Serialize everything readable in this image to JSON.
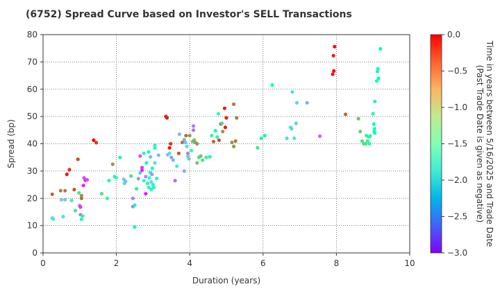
{
  "chart_data": {
    "type": "scatter",
    "title": "(6752)   Spread Curve based on Investor's SELL Transactions",
    "xlabel": "Duration (years)",
    "ylabel": "Spread (bp)",
    "xlim": [
      0,
      10
    ],
    "ylim": [
      0,
      80
    ],
    "x_ticks": [
      "0",
      "2",
      "4",
      "6",
      "8",
      "10"
    ],
    "y_ticks": [
      "0",
      "10",
      "20",
      "30",
      "40",
      "50",
      "60",
      "70",
      "80"
    ],
    "grid": true,
    "colorbar": {
      "label_line1": "Time in years between 5/16/2025 and Trade Date",
      "label_line2": "(Past Trade Date is given as negative)",
      "range": [
        -3.0,
        0.0
      ],
      "ticks": [
        "0.0",
        "−0.5",
        "−1.0",
        "−1.5",
        "−2.0",
        "−2.5",
        "−3.0"
      ],
      "colormap": "rainbow"
    },
    "points": [
      [
        0.25,
        12.8,
        -1.9
      ],
      [
        0.28,
        12.4,
        -1.9
      ],
      [
        0.25,
        21.5,
        -0.4
      ],
      [
        0.48,
        22.8,
        -0.5
      ],
      [
        0.5,
        19.5,
        -2.1
      ],
      [
        0.55,
        13.3,
        -2.0
      ],
      [
        0.6,
        19.5,
        -2.2
      ],
      [
        0.6,
        22.8,
        -0.5
      ],
      [
        0.65,
        28.8,
        -0.1
      ],
      [
        0.72,
        30.5,
        -0.2
      ],
      [
        0.78,
        19.2,
        -2.0
      ],
      [
        0.85,
        23.2,
        -0.3
      ],
      [
        0.88,
        15.5,
        -1.2
      ],
      [
        0.95,
        34.3,
        -0.3
      ],
      [
        0.98,
        22.0,
        -1.1
      ],
      [
        1.0,
        17.3,
        -2.6
      ],
      [
        1.02,
        16.8,
        -2.8
      ],
      [
        1.02,
        14.0,
        -2.5
      ],
      [
        1.05,
        12.3,
        -1.3
      ],
      [
        1.05,
        21.0,
        -0.6
      ],
      [
        1.05,
        20.0,
        -0.4
      ],
      [
        1.08,
        13.5,
        -1.2
      ],
      [
        1.1,
        24.7,
        -2.9
      ],
      [
        1.12,
        27.5,
        -2.7
      ],
      [
        1.15,
        26.6,
        -2.8
      ],
      [
        1.2,
        26.8,
        -2.7
      ],
      [
        1.38,
        41.3,
        0.0
      ],
      [
        1.45,
        40.4,
        -0.2
      ],
      [
        1.6,
        21.7,
        -1.0
      ],
      [
        1.75,
        20.0,
        -1.2
      ],
      [
        1.8,
        26.5,
        -1.3
      ],
      [
        1.9,
        32.5,
        -0.6
      ],
      [
        1.95,
        28.0,
        -1.3
      ],
      [
        2.0,
        27.5,
        -1.8
      ],
      [
        2.1,
        35.0,
        -1.4
      ],
      [
        2.2,
        27.0,
        -2.1
      ],
      [
        2.22,
        25.5,
        -2.1
      ],
      [
        2.25,
        26.2,
        -2.2
      ],
      [
        2.4,
        28.2,
        -1.0
      ],
      [
        2.45,
        20.0,
        -2.5
      ],
      [
        2.45,
        17.0,
        -2.5
      ],
      [
        2.5,
        17.5,
        -1.4
      ],
      [
        2.5,
        9.5,
        -1.4
      ],
      [
        2.55,
        23.5,
        -1.1
      ],
      [
        2.6,
        27.2,
        -2.4
      ],
      [
        2.65,
        35.5,
        -2.7
      ],
      [
        2.65,
        29.3,
        -2.1
      ],
      [
        2.7,
        31.3,
        -2.8
      ],
      [
        2.7,
        30.3,
        -2.9
      ],
      [
        2.75,
        36.5,
        -1.7
      ],
      [
        2.75,
        26.5,
        -1.8
      ],
      [
        2.8,
        28.0,
        -2.4
      ],
      [
        2.8,
        21.7,
        -2.9
      ],
      [
        2.82,
        33.0,
        -1.6
      ],
      [
        2.85,
        25.5,
        -1.6
      ],
      [
        2.88,
        24.0,
        -1.8
      ],
      [
        2.88,
        37.0,
        -1.6
      ],
      [
        2.9,
        27.5,
        -1.7
      ],
      [
        2.92,
        29.5,
        -1.6
      ],
      [
        2.93,
        35.2,
        -2.2
      ],
      [
        2.95,
        23.3,
        -1.7
      ],
      [
        2.95,
        26.0,
        -2.0
      ],
      [
        2.97,
        28.8,
        -2.4
      ],
      [
        2.98,
        31.0,
        -1.6
      ],
      [
        3.0,
        25.0,
        -1.7
      ],
      [
        3.02,
        24.0,
        -1.6
      ],
      [
        3.05,
        33.0,
        -1.9
      ],
      [
        3.05,
        38.5,
        -1.6
      ],
      [
        3.05,
        39.5,
        -1.8
      ],
      [
        3.1,
        27.3,
        -1.7
      ],
      [
        3.15,
        35.8,
        -2.2
      ],
      [
        3.35,
        50.0,
        -0.1
      ],
      [
        3.38,
        49.5,
        -0.1
      ],
      [
        3.4,
        36.0,
        -2.1
      ],
      [
        3.45,
        38.5,
        -0.1
      ],
      [
        3.45,
        36.5,
        -2.0
      ],
      [
        3.48,
        40.0,
        -0.2
      ],
      [
        3.5,
        35.0,
        -2.4
      ],
      [
        3.55,
        34.0,
        -2.2
      ],
      [
        3.6,
        26.5,
        -2.6
      ],
      [
        3.65,
        31.8,
        -1.9
      ],
      [
        3.7,
        36.5,
        -0.3
      ],
      [
        3.72,
        43.5,
        -2.2
      ],
      [
        3.8,
        40.5,
        -0.5
      ],
      [
        3.85,
        41.5,
        -2.3
      ],
      [
        3.85,
        30.0,
        -2.3
      ],
      [
        3.88,
        40.5,
        -2.2
      ],
      [
        3.9,
        43.0,
        -0.4
      ],
      [
        3.92,
        39.0,
        -2.0
      ],
      [
        3.95,
        35.3,
        -2.0
      ],
      [
        3.95,
        36.5,
        -2.5
      ],
      [
        3.98,
        34.5,
        -2.2
      ],
      [
        4.0,
        43.0,
        -0.6
      ],
      [
        4.05,
        37.5,
        -1.9
      ],
      [
        4.08,
        40.8,
        -0.9
      ],
      [
        4.1,
        46.5,
        -2.5
      ],
      [
        4.1,
        45.0,
        -2.6
      ],
      [
        4.12,
        41.3,
        -0.8
      ],
      [
        4.15,
        40.5,
        -0.7
      ],
      [
        4.2,
        40.0,
        -0.6
      ],
      [
        4.2,
        33.0,
        -0.9
      ],
      [
        4.25,
        35.0,
        -1.0
      ],
      [
        4.3,
        35.5,
        -0.8
      ],
      [
        4.35,
        34.0,
        -1.1
      ],
      [
        4.45,
        35.0,
        -1.2
      ],
      [
        4.55,
        35.2,
        -1.3
      ],
      [
        4.6,
        43.0,
        -1.2
      ],
      [
        4.65,
        40.8,
        -0.4
      ],
      [
        4.7,
        44.8,
        -1.5
      ],
      [
        4.75,
        42.5,
        -1.6
      ],
      [
        4.78,
        51.0,
        -1.7
      ],
      [
        4.8,
        41.3,
        -0.3
      ],
      [
        4.85,
        47.3,
        -0.3
      ],
      [
        4.88,
        47.5,
        -1.0
      ],
      [
        4.9,
        44.5,
        -0.6
      ],
      [
        4.95,
        53.0,
        -0.1
      ],
      [
        4.97,
        46.0,
        -0.1
      ],
      [
        5.0,
        49.5,
        -0.1
      ],
      [
        5.15,
        40.5,
        -0.6
      ],
      [
        5.2,
        54.5,
        -0.5
      ],
      [
        5.2,
        39.0,
        -0.6
      ],
      [
        5.25,
        41.0,
        -0.5
      ],
      [
        5.28,
        49.5,
        -0.5
      ],
      [
        5.85,
        38.5,
        -1.1
      ],
      [
        5.95,
        42.0,
        -1.2
      ],
      [
        6.05,
        43.0,
        -1.4
      ],
      [
        6.25,
        61.5,
        -1.5
      ],
      [
        6.65,
        42.0,
        -2.0
      ],
      [
        6.75,
        46.0,
        -1.9
      ],
      [
        6.78,
        45.5,
        -2.0
      ],
      [
        6.8,
        59.0,
        -2.0
      ],
      [
        6.85,
        42.0,
        -1.9
      ],
      [
        6.9,
        47.5,
        -2.1
      ],
      [
        6.92,
        55.0,
        -2.0
      ],
      [
        7.2,
        55.0,
        -2.3
      ],
      [
        7.55,
        42.8,
        -2.6
      ],
      [
        7.9,
        65.5,
        -0.1
      ],
      [
        7.92,
        72.3,
        -0.1
      ],
      [
        7.93,
        66.7,
        0.0
      ],
      [
        7.95,
        75.6,
        0.0
      ],
      [
        8.25,
        50.8,
        -0.4
      ],
      [
        8.6,
        49.2,
        -0.8
      ],
      [
        8.65,
        44.5,
        -0.9
      ],
      [
        8.7,
        41.0,
        -1.0
      ],
      [
        8.75,
        40.0,
        -1.0
      ],
      [
        8.8,
        40.0,
        -1.1
      ],
      [
        8.82,
        43.0,
        -1.1
      ],
      [
        8.85,
        41.0,
        -1.2
      ],
      [
        8.88,
        42.5,
        -1.2
      ],
      [
        8.9,
        40.0,
        -1.3
      ],
      [
        8.92,
        42.8,
        -1.3
      ],
      [
        9.0,
        51.0,
        -1.3
      ],
      [
        9.02,
        47.2,
        -1.4
      ],
      [
        9.03,
        44.5,
        -1.4
      ],
      [
        9.04,
        45.5,
        -1.4
      ],
      [
        9.05,
        44.0,
        -1.5
      ],
      [
        9.05,
        55.5,
        -1.3
      ],
      [
        9.1,
        63.0,
        -1.6
      ],
      [
        9.12,
        66.5,
        -1.5
      ],
      [
        9.13,
        67.5,
        -1.6
      ],
      [
        9.15,
        64.0,
        -1.5
      ],
      [
        9.2,
        74.8,
        -1.5
      ]
    ]
  }
}
